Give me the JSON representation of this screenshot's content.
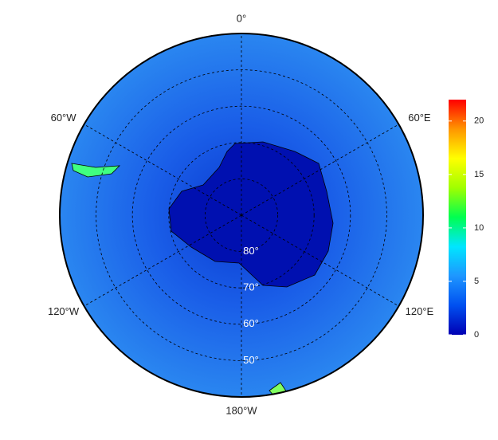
{
  "map": {
    "lat_range": [
      90,
      40
    ],
    "longitudes": [
      {
        "value": 0,
        "label": "0°"
      },
      {
        "value": 60,
        "label": "60°E"
      },
      {
        "value": 120,
        "label": "120°E"
      },
      {
        "value": 180,
        "label": "180°W"
      },
      {
        "value": -120,
        "label": "120°W"
      },
      {
        "value": -60,
        "label": "60°W"
      }
    ],
    "latitudes": [
      {
        "value": 80,
        "label": "80°"
      },
      {
        "value": 70,
        "label": "70°"
      },
      {
        "value": 60,
        "label": "60°"
      },
      {
        "value": 50,
        "label": "50°"
      }
    ],
    "colorbar": {
      "lim": [
        0,
        22
      ],
      "ticks": [
        0,
        5,
        10,
        15,
        20
      ],
      "colors": [
        "#0000b4",
        "#0050f0",
        "#1e96ff",
        "#00e6ff",
        "#00ff50",
        "#a0ff00",
        "#ffff00",
        "#ff9600",
        "#ff0000"
      ]
    }
  }
}
